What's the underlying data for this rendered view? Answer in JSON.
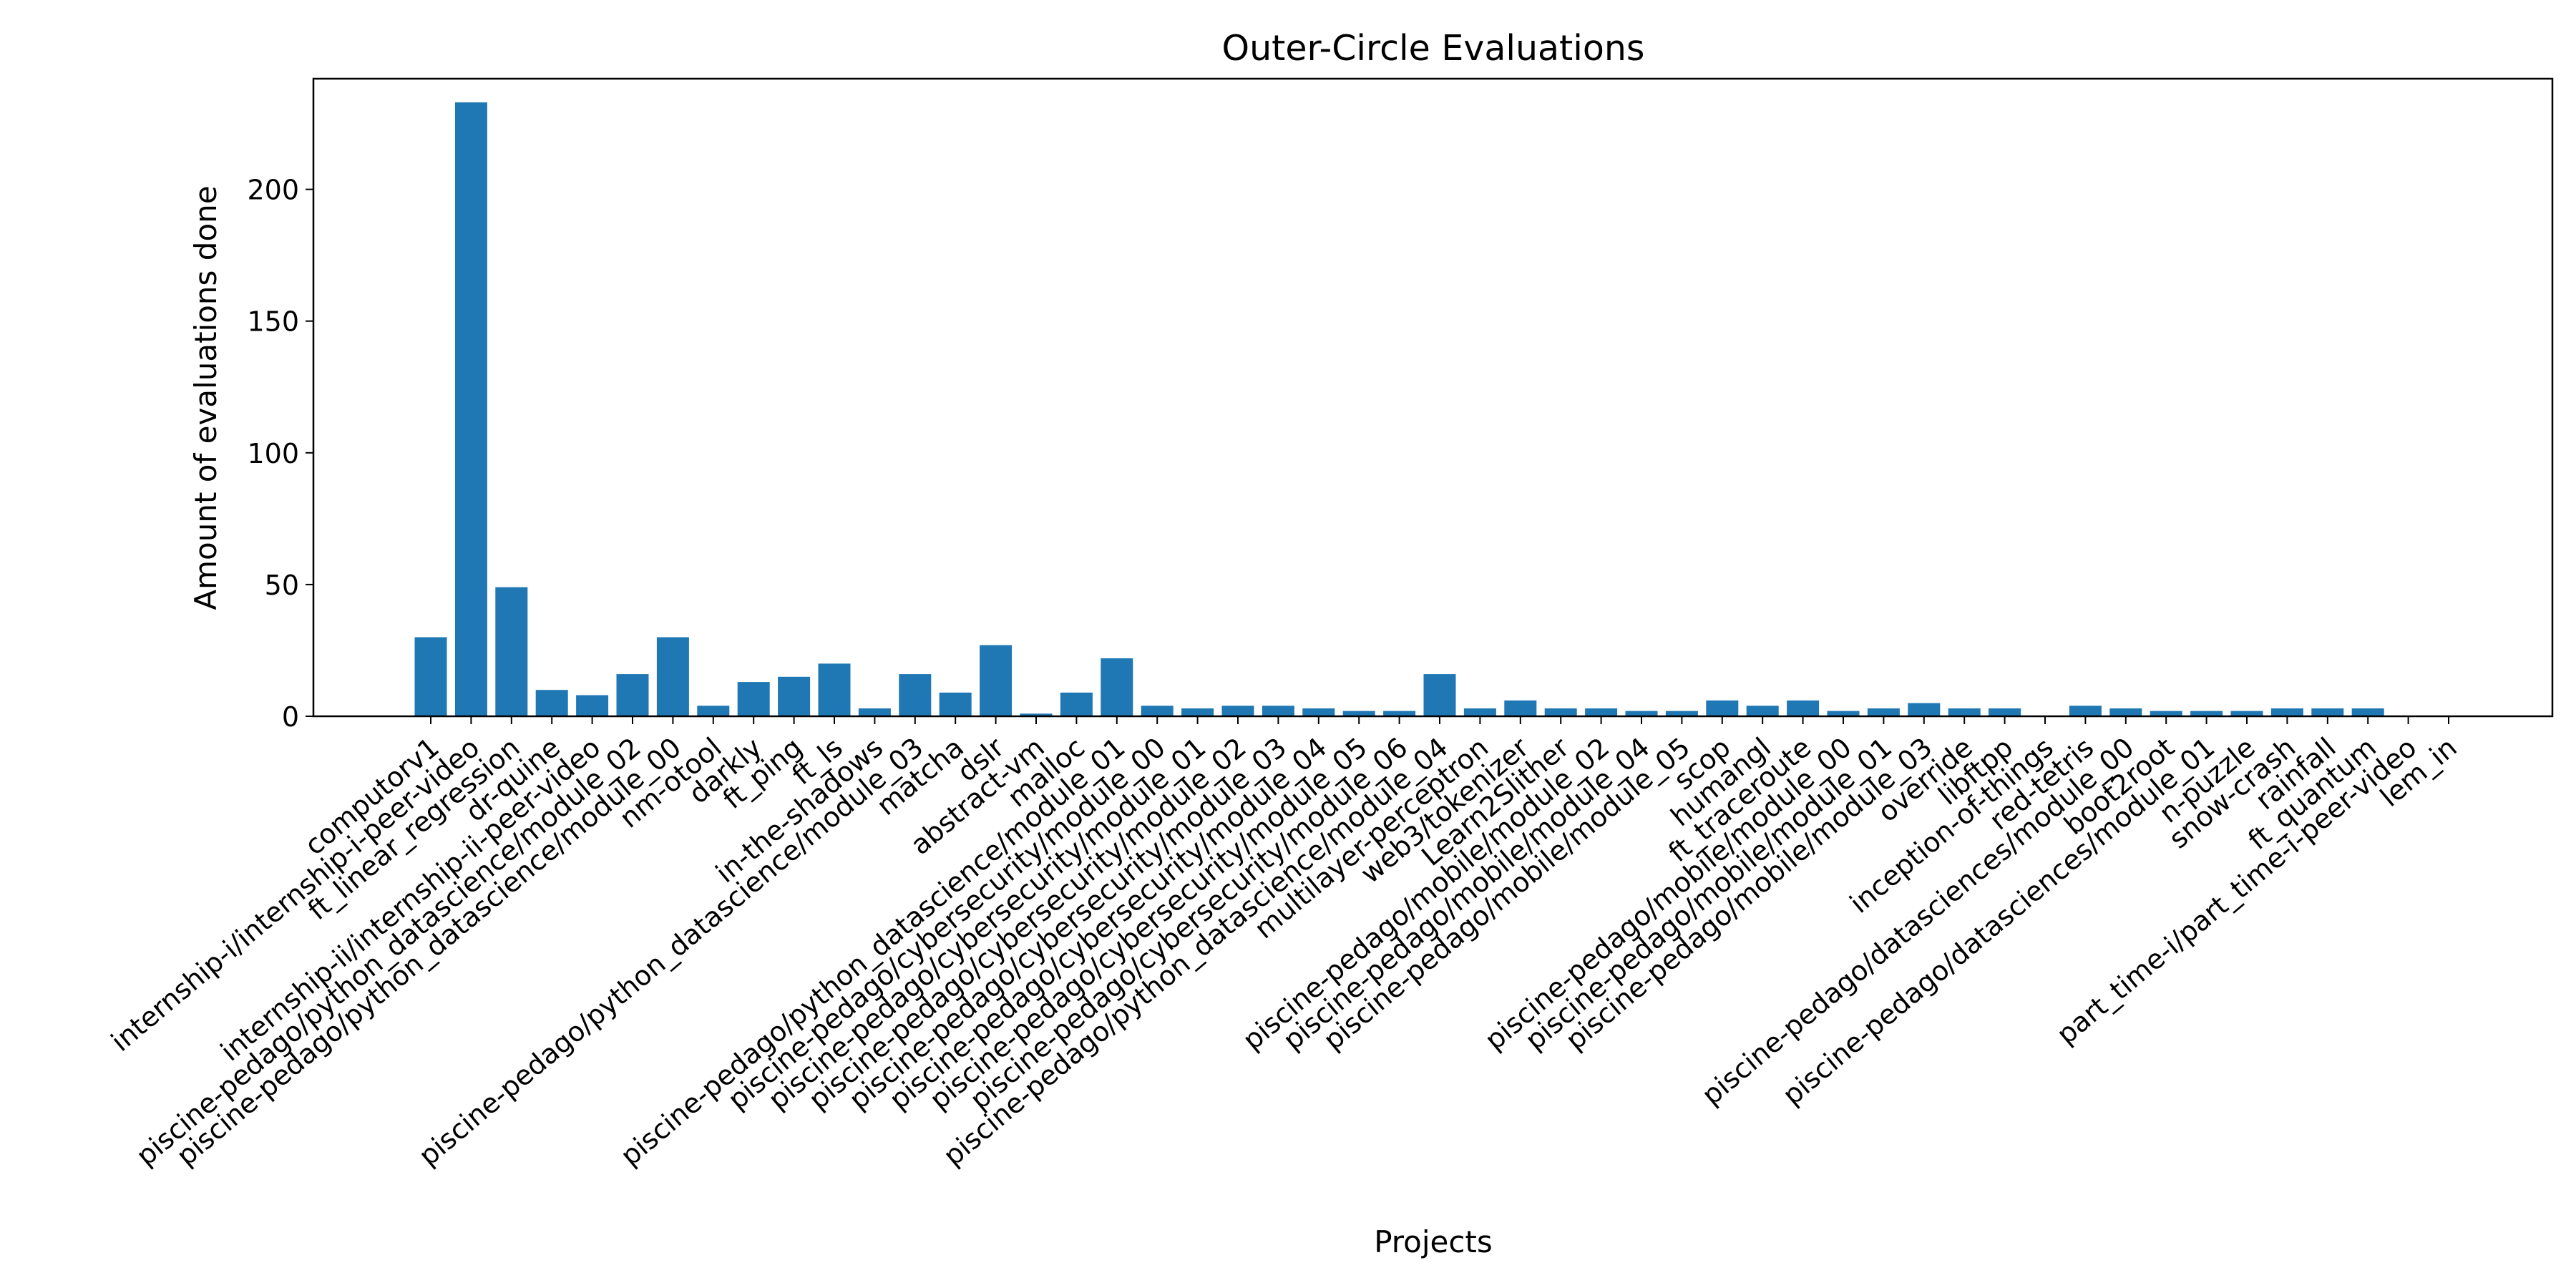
{
  "chart_data": {
    "type": "bar",
    "title": "Outer-Circle Evaluations",
    "xlabel": "Projects",
    "ylabel": "Amount of evaluations done",
    "ylim": [
      0,
      242
    ],
    "yticks": [
      0,
      50,
      100,
      150,
      200
    ],
    "grid": false,
    "bar_color": "#1f77b4",
    "categories": [
      "computorv1",
      "internship-i/internship-i-peer-video",
      "ft_linear_regression",
      "dr-quine",
      "internship-ii/internship-ii-peer-video",
      "piscine-pedago/python_datascience/module_02",
      "piscine-pedago/python_datascience/module_00",
      "nm-otool",
      "darkly",
      "ft_ping",
      "ft_ls",
      "in-the-shadows",
      "piscine-pedago/python_datascience/module_03",
      "matcha",
      "dslr",
      "abstract-vm",
      "malloc",
      "piscine-pedago/python_datascience/module_01",
      "piscine-pedago/cybersecurity/module_00",
      "piscine-pedago/cybersecurity/module_01",
      "piscine-pedago/cybersecurity/module_02",
      "piscine-pedago/cybersecurity/module_03",
      "piscine-pedago/cybersecurity/module_04",
      "piscine-pedago/cybersecurity/module_05",
      "piscine-pedago/cybersecurity/module_06",
      "piscine-pedago/python_datascience/module_04",
      "multilayer-perceptron",
      "web3/tokenizer",
      "Learn2Slither",
      "piscine-pedago/mobile/module_02",
      "piscine-pedago/mobile/module_04",
      "piscine-pedago/mobile/module_05",
      "scop",
      "humangl",
      "ft_traceroute",
      "piscine-pedago/mobile/module_00",
      "piscine-pedago/mobile/module_01",
      "piscine-pedago/mobile/module_03",
      "override",
      "libftpp",
      "inception-of-things",
      "red-tetris",
      "piscine-pedago/datasciences/module_00",
      "boot2root",
      "piscine-pedago/datasciences/module_01",
      "n-puzzle",
      "snow-crash",
      "rainfall",
      "ft_quantum",
      "part_time-i/part_time-i-peer-video",
      "lem_in"
    ],
    "values": [
      30,
      233,
      49,
      10,
      8,
      16,
      30,
      4,
      13,
      15,
      20,
      3,
      16,
      9,
      27,
      1,
      9,
      22,
      4,
      3,
      4,
      4,
      3,
      2,
      2,
      16,
      3,
      6,
      3,
      3,
      2,
      2,
      6,
      4,
      6,
      2,
      3,
      5,
      3,
      3,
      0,
      4,
      3,
      2,
      2,
      2,
      3,
      3,
      3,
      0,
      0
    ]
  }
}
